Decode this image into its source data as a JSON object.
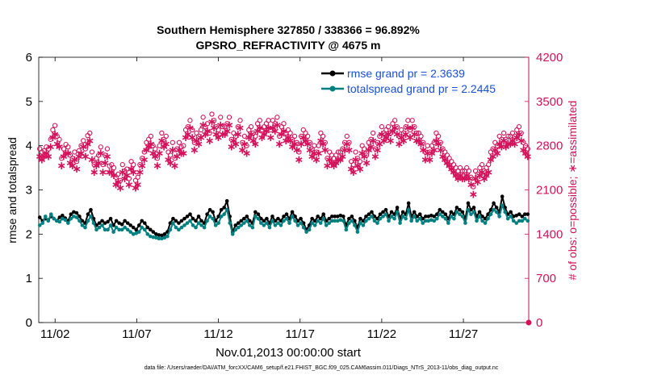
{
  "chart_data": {
    "type": "line",
    "title": "Southern Hemisphere 327850 / 338366 = 96.892%",
    "subtitle": "GPSRO_REFRACTIVITY @ 4675 m",
    "xlabel": "Nov.01,2013 00:00:00 start",
    "ylabel": "rmse and totalspread",
    "ylabel_right": "# of obs: o=possible; ∗=assimilated",
    "footer": "data file: /Users/raeder/DAI/ATM_forcXX/CAM6_setup/f.e21.FHIST_BGC.f09_025.CAM6assim.011/Diags_NTrS_2013-11/obs_diag_output.nc",
    "xlim": [
      0.5,
      30.5
    ],
    "ylim": [
      0,
      6
    ],
    "ylim_right": [
      0,
      4200
    ],
    "x_ticks": [
      1.5,
      6.5,
      11.5,
      16.5,
      21.5,
      26.5
    ],
    "x_tick_labels": [
      "11/02",
      "11/07",
      "11/12",
      "11/17",
      "11/22",
      "11/27"
    ],
    "y_ticks": [
      0,
      1,
      2,
      3,
      4,
      5,
      6
    ],
    "y_tick_labels_right": [
      "0",
      "700",
      "1400",
      "2100",
      "2800",
      "3500",
      "4200"
    ],
    "legend_position": "top-right",
    "colors": {
      "rmse": "#000000",
      "spread": "#008080",
      "obs": "#d4115b"
    },
    "series": [
      {
        "name": "rmse grand pr = 2.3639",
        "color": "#000000",
        "y": [
          2.38,
          2.3,
          2.35,
          2.32,
          2.4,
          2.35,
          2.3,
          2.38,
          2.42,
          2.36,
          2.3,
          2.45,
          2.5,
          2.48,
          2.4,
          2.3,
          2.25,
          2.45,
          2.55,
          2.35,
          2.2,
          2.25,
          2.3,
          2.25,
          2.28,
          2.35,
          2.2,
          2.3,
          2.25,
          2.22,
          2.3,
          2.25,
          2.2,
          2.15,
          2.1,
          2.2,
          2.3,
          2.25,
          2.15,
          2.1,
          2.05,
          2.0,
          1.98,
          1.97,
          2.0,
          2.05,
          2.25,
          2.35,
          2.3,
          2.25,
          2.3,
          2.35,
          2.4,
          2.45,
          2.35,
          2.3,
          2.4,
          2.3,
          2.25,
          2.45,
          2.55,
          2.5,
          2.3,
          2.4,
          2.55,
          2.6,
          2.75,
          2.4,
          2.05,
          2.2,
          2.25,
          2.3,
          2.35,
          2.4,
          2.3,
          2.25,
          2.5,
          2.45,
          2.35,
          2.3,
          2.35,
          2.25,
          2.4,
          2.3,
          2.35,
          2.3,
          2.4,
          2.45,
          2.35,
          2.5,
          2.4,
          2.3,
          2.35,
          2.25,
          2.1,
          2.2,
          2.35,
          2.3,
          2.4,
          2.35,
          2.45,
          2.3,
          2.35,
          2.4,
          2.4,
          2.4,
          2.42,
          2.4,
          2.2,
          2.35,
          2.4,
          2.3,
          2.15,
          2.35,
          2.3,
          2.4,
          2.45,
          2.5,
          2.4,
          2.35,
          2.45,
          2.5,
          2.55,
          2.4,
          2.5,
          2.45,
          2.6,
          2.35,
          2.5,
          2.45,
          2.7,
          2.4,
          2.5,
          2.4,
          2.45,
          2.35,
          2.4,
          2.4,
          2.42,
          2.4,
          2.45,
          2.55,
          2.5,
          2.45,
          2.35,
          2.5,
          2.45,
          2.6,
          2.55,
          2.5,
          2.35,
          2.7,
          2.55,
          2.6,
          2.4,
          2.5,
          2.4,
          2.35,
          2.45,
          2.55,
          2.7,
          2.6,
          2.5,
          2.85,
          2.6,
          2.45,
          2.5,
          2.4,
          2.42,
          2.45,
          2.4,
          2.45,
          2.45
        ]
      },
      {
        "name": "totalspread grand pr = 2.2445",
        "color": "#008080",
        "y": [
          2.2,
          2.25,
          2.4,
          2.3,
          2.45,
          2.35,
          2.3,
          2.28,
          2.35,
          2.32,
          2.25,
          2.35,
          2.4,
          2.38,
          2.3,
          2.2,
          2.15,
          2.3,
          2.4,
          2.25,
          2.1,
          2.15,
          2.2,
          2.1,
          2.1,
          2.2,
          2.05,
          2.15,
          2.1,
          2.1,
          2.15,
          2.1,
          2.05,
          2.0,
          2.02,
          2.05,
          2.15,
          2.1,
          2.0,
          1.95,
          1.93,
          1.92,
          1.9,
          1.9,
          1.92,
          1.95,
          2.1,
          2.25,
          2.15,
          2.1,
          2.15,
          2.2,
          2.25,
          2.3,
          2.2,
          2.15,
          2.25,
          2.2,
          2.15,
          2.3,
          2.4,
          2.35,
          2.2,
          2.25,
          2.4,
          2.45,
          2.55,
          2.25,
          2.0,
          2.1,
          2.15,
          2.2,
          2.25,
          2.3,
          2.2,
          2.15,
          2.4,
          2.35,
          2.25,
          2.2,
          2.25,
          2.15,
          2.3,
          2.2,
          2.25,
          2.2,
          2.3,
          2.35,
          2.25,
          2.4,
          2.3,
          2.2,
          2.25,
          2.15,
          2.05,
          2.1,
          2.25,
          2.2,
          2.3,
          2.25,
          2.35,
          2.2,
          2.25,
          2.3,
          2.3,
          2.3,
          2.32,
          2.3,
          2.1,
          2.25,
          2.3,
          2.2,
          2.05,
          2.25,
          2.2,
          2.3,
          2.35,
          2.4,
          2.3,
          2.25,
          2.35,
          2.4,
          2.45,
          2.3,
          2.4,
          2.35,
          2.5,
          2.25,
          2.4,
          2.35,
          2.55,
          2.3,
          2.4,
          2.3,
          2.35,
          2.25,
          2.3,
          2.3,
          2.32,
          2.3,
          2.35,
          2.45,
          2.4,
          2.35,
          2.25,
          2.4,
          2.35,
          2.5,
          2.45,
          2.4,
          2.25,
          2.55,
          2.45,
          2.5,
          2.3,
          2.4,
          2.3,
          2.25,
          2.35,
          2.45,
          2.55,
          2.5,
          2.4,
          2.65,
          2.5,
          2.35,
          2.4,
          2.3,
          2.25,
          2.3,
          2.3,
          2.35,
          2.3
        ]
      },
      {
        "name": "possible",
        "color": "#d4115b",
        "marker": "o",
        "axis": "right",
        "y": [
          2750,
          2700,
          2720,
          2780,
          2750,
          2900,
          3050,
          3120,
          2950,
          2900,
          2600,
          2750,
          2820,
          2780,
          2650,
          2600,
          2700,
          2550,
          2720,
          2800,
          2880,
          2750,
          2960,
          3000,
          2700,
          2500,
          2600,
          2650,
          2780,
          2500,
          2650,
          2750,
          2480,
          2500,
          2450,
          2300,
          2350,
          2250,
          2500,
          2400,
          2430,
          2280,
          2550,
          2500,
          2250,
          2300,
          2500,
          2600,
          2700,
          2850,
          2900,
          2950,
          2800,
          2750,
          2600,
          2800,
          3000,
          2900,
          2950,
          2700,
          2650,
          2850,
          2600,
          2750,
          2850,
          2780,
          2800,
          3050,
          3100,
          3200,
          3050,
          2850,
          3000,
          2950,
          3050,
          3250,
          3100,
          3150,
          3000,
          3300,
          3200,
          3100,
          3050,
          3250,
          3100,
          3100,
          3150,
          3250,
          2900,
          3000,
          2950,
          3100,
          3200,
          2850,
          2950,
          2800,
          3050,
          3100,
          3000,
          2950,
          3150,
          3200,
          3050,
          3100,
          3150,
          3200,
          3050,
          3200,
          3150,
          3250,
          2950,
          3100,
          3150,
          3000,
          3050,
          3000,
          2900,
          2950,
          2850,
          2700,
          2950,
          3050,
          3000,
          2950,
          2850,
          2750,
          2800,
          2700,
          2800,
          3000,
          2950,
          2850,
          2600,
          2700,
          2650,
          2600,
          2650,
          2700,
          2700,
          2750,
          2850,
          2950,
          2850,
          2550,
          2500,
          2700,
          2600,
          2550,
          2800,
          2750,
          2650,
          2850,
          2900,
          3000,
          2750,
          2850,
          2950,
          3100,
          3000,
          3050,
          3100,
          3000,
          3150,
          3200,
          3100,
          2950,
          3050,
          3000,
          3100,
          3200,
          3050,
          3200,
          3100,
          3000,
          3000,
          2950,
          2850,
          2700,
          2800,
          2700,
          2800,
          2850,
          3000,
          2950,
          2850,
          2750,
          2700,
          2650,
          2600,
          2550,
          2500,
          2450,
          2400,
          2450,
          2400,
          2400,
          2450,
          2400,
          2300,
          2150,
          2400,
          2350,
          2450,
          2500,
          2400,
          2450,
          2500,
          2700,
          2750,
          2850,
          2800,
          2950,
          2900,
          3000,
          2900,
          2950,
          2950,
          3000,
          2950,
          3050,
          3100,
          3000,
          2850,
          2800,
          2750
        ]
      },
      {
        "name": "assimilated",
        "color": "#d4115b",
        "marker": "*",
        "axis": "right",
        "y": [
          2650,
          2600,
          2650,
          2700,
          2650,
          2800,
          2950,
          3000,
          2850,
          2800,
          2500,
          2650,
          2700,
          2700,
          2550,
          2500,
          2600,
          2450,
          2650,
          2700,
          2800,
          2650,
          2850,
          2900,
          2600,
          2400,
          2500,
          2550,
          2700,
          2400,
          2550,
          2650,
          2400,
          2400,
          2350,
          2200,
          2250,
          2150,
          2400,
          2300,
          2350,
          2200,
          2450,
          2400,
          2150,
          2200,
          2400,
          2500,
          2600,
          2750,
          2800,
          2850,
          2700,
          2650,
          2500,
          2700,
          2900,
          2800,
          2850,
          2600,
          2550,
          2750,
          2500,
          2650,
          2750,
          2700,
          2700,
          2950,
          3000,
          3100,
          2950,
          2750,
          2900,
          2850,
          2950,
          3150,
          3000,
          3050,
          2900,
          3200,
          3100,
          3000,
          2950,
          3150,
          3000,
          3000,
          3050,
          3150,
          2800,
          2900,
          2850,
          3000,
          3100,
          2750,
          2850,
          2700,
          2950,
          3000,
          2900,
          2850,
          3050,
          3100,
          2950,
          3000,
          3050,
          3100,
          2950,
          3100,
          3050,
          3150,
          2850,
          3000,
          3050,
          2900,
          2950,
          2900,
          2800,
          2850,
          2750,
          2600,
          2850,
          2950,
          2900,
          2850,
          2750,
          2650,
          2700,
          2600,
          2700,
          2900,
          2850,
          2750,
          2500,
          2600,
          2550,
          2500,
          2550,
          2600,
          2600,
          2650,
          2750,
          2850,
          2750,
          2450,
          2400,
          2600,
          2500,
          2450,
          2700,
          2650,
          2550,
          2750,
          2800,
          2900,
          2650,
          2750,
          2850,
          3000,
          2900,
          2950,
          3000,
          2900,
          3050,
          3100,
          3000,
          2850,
          2950,
          2900,
          3000,
          3100,
          2950,
          3100,
          3000,
          2900,
          2900,
          2850,
          2750,
          2600,
          2700,
          2600,
          2700,
          2750,
          2900,
          2850,
          2750,
          2650,
          2600,
          2550,
          2500,
          2450,
          2400,
          2350,
          2300,
          2350,
          2300,
          2300,
          2350,
          2300,
          2200,
          2050,
          2300,
          2250,
          2350,
          2400,
          2300,
          2350,
          2400,
          2600,
          2650,
          2750,
          2700,
          2850,
          2800,
          2900,
          2800,
          2850,
          2850,
          2900,
          2850,
          2950,
          3000,
          2900,
          2750,
          2700,
          2650
        ]
      }
    ],
    "extra_point_right_axis": {
      "x_end": true,
      "value": 0
    }
  }
}
